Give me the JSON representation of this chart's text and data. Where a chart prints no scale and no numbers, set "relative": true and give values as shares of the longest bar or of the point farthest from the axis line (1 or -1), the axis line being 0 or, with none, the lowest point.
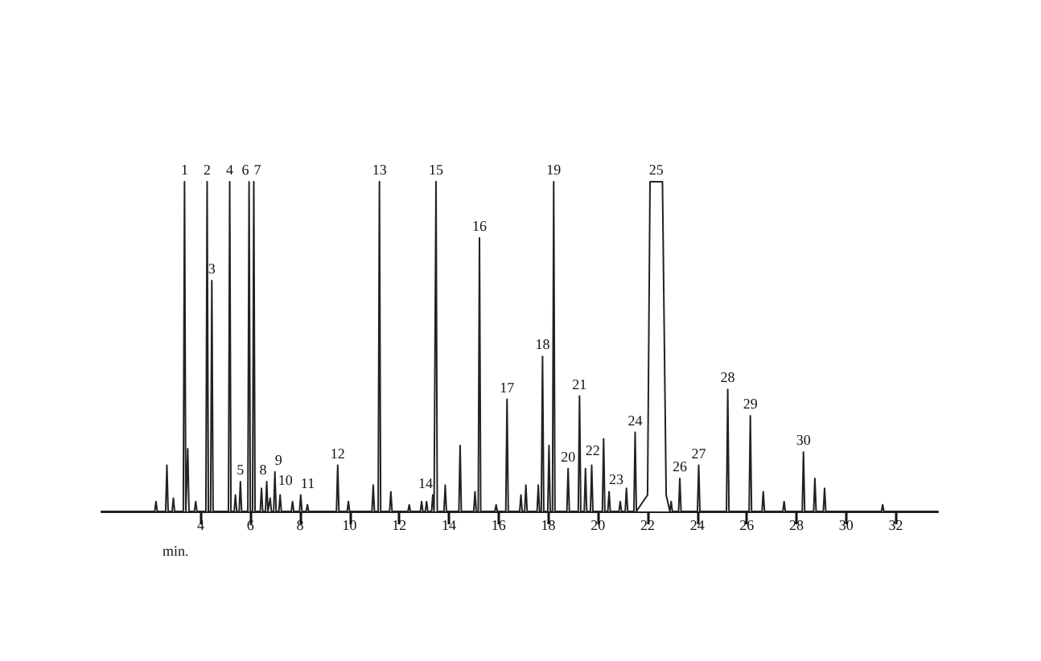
{
  "chart_data": {
    "type": "line",
    "relative": true,
    "xlabel": "min.",
    "xlim": [
      0,
      33.7
    ],
    "xticks": [
      4,
      6,
      8,
      10,
      12,
      14,
      16,
      18,
      20,
      22,
      24,
      26,
      28,
      30,
      32
    ],
    "grid": false,
    "marker": "none",
    "line_style": "solid",
    "series": [
      {
        "color": "#222222",
        "x": [
          0,
          2.15,
          2.2,
          2.25,
          2.59,
          2.64,
          2.69,
          2.85,
          2.9,
          2.95,
          3.3,
          3.35,
          3.4,
          3.43,
          3.48,
          3.53,
          3.75,
          3.8,
          3.85,
          4.21,
          4.26,
          4.31,
          4.4,
          4.45,
          4.5,
          5.12,
          5.17,
          5.22,
          5.35,
          5.4,
          5.45,
          5.55,
          5.6,
          5.65,
          5.9,
          5.95,
          6.0,
          6.09,
          6.14,
          6.19,
          6.4,
          6.45,
          6.5,
          6.61,
          6.66,
          6.71,
          6.75,
          6.8,
          6.85,
          6.94,
          6.99,
          7.04,
          7.15,
          7.2,
          7.25,
          7.65,
          7.7,
          7.75,
          7.98,
          8.03,
          8.08,
          8.25,
          8.3,
          8.35,
          9.47,
          9.52,
          9.57,
          9.9,
          9.95,
          10.0,
          10.9,
          10.95,
          11.0,
          11.15,
          11.2,
          11.25,
          11.61,
          11.66,
          11.71,
          12.35,
          12.4,
          12.45,
          12.85,
          12.9,
          12.95,
          13.05,
          13.1,
          13.15,
          13.3,
          13.35,
          13.4,
          13.43,
          13.48,
          13.53,
          13.8,
          13.85,
          13.9,
          14.4,
          14.45,
          14.5,
          15.0,
          15.05,
          15.1,
          15.18,
          15.23,
          15.28,
          15.85,
          15.9,
          15.95,
          16.29,
          16.34,
          16.39,
          16.85,
          16.9,
          16.95,
          17.05,
          17.1,
          17.15,
          17.55,
          17.6,
          17.65,
          17.72,
          17.77,
          17.82,
          17.98,
          18.03,
          18.08,
          18.17,
          18.22,
          18.27,
          18.75,
          18.8,
          18.85,
          19.21,
          19.26,
          19.31,
          19.45,
          19.5,
          19.55,
          19.7,
          19.75,
          19.8,
          20.18,
          20.23,
          20.28,
          20.4,
          20.45,
          20.5,
          20.85,
          20.9,
          20.95,
          21.1,
          21.15,
          21.2,
          21.45,
          21.5,
          21.55,
          22.0,
          22.1,
          22.6,
          22.75,
          22.9,
          22.95,
          23.0,
          23.25,
          23.3,
          23.35,
          24.01,
          24.06,
          24.11,
          25.18,
          25.23,
          25.28,
          26.09,
          26.14,
          26.19,
          26.61,
          26.66,
          26.71,
          27.45,
          27.5,
          27.55,
          28.23,
          28.28,
          28.33,
          28.69,
          28.74,
          28.79,
          29.08,
          29.13,
          29.18,
          31.42,
          31.47,
          31.52,
          33.7
        ],
        "values": [
          0,
          0,
          0.03,
          0,
          0,
          0.14,
          0,
          0,
          0.04,
          0,
          0,
          1,
          0,
          0,
          0.19,
          0,
          0,
          0.03,
          0,
          0,
          1,
          0,
          0,
          0.7,
          0,
          0,
          1,
          0,
          0,
          0.05,
          0,
          0,
          0.09,
          0,
          0,
          1,
          0,
          0,
          1,
          0,
          0,
          0.07,
          0,
          0,
          0.09,
          0,
          0,
          0.04,
          0,
          0,
          0.12,
          0,
          0,
          0.05,
          0,
          0,
          0.03,
          0,
          0,
          0.05,
          0,
          0,
          0.02,
          0,
          0,
          0.14,
          0,
          0,
          0.03,
          0,
          0,
          0.08,
          0,
          0,
          1,
          0,
          0,
          0.06,
          0,
          0,
          0.02,
          0,
          0,
          0.03,
          0,
          0,
          0.03,
          0,
          0,
          0.05,
          0,
          0,
          1,
          0,
          0,
          0.08,
          0,
          0,
          0.2,
          0,
          0,
          0.06,
          0,
          0,
          0.83,
          0,
          0,
          0.02,
          0,
          0,
          0.34,
          0,
          0,
          0.05,
          0,
          0,
          0.08,
          0,
          0,
          0.08,
          0,
          0,
          0.47,
          0,
          0,
          0.2,
          0,
          0,
          1,
          0,
          0,
          0.13,
          0,
          0,
          0.35,
          0,
          0,
          0.13,
          0,
          0,
          0.14,
          0,
          0,
          0.22,
          0,
          0,
          0.06,
          0,
          0,
          0.03,
          0,
          0,
          0.07,
          0,
          0,
          0.24,
          0,
          0.05,
          1,
          1,
          0.05,
          0,
          0.03,
          0,
          0,
          0.1,
          0,
          0,
          0.14,
          0,
          0,
          0.37,
          0,
          0,
          0.29,
          0,
          0,
          0.06,
          0,
          0,
          0.03,
          0,
          0,
          0.18,
          0,
          0,
          0.1,
          0,
          0,
          0.07,
          0,
          0,
          0.02,
          0,
          0
        ]
      }
    ],
    "annotations": [
      {
        "text": "1",
        "x": 3.35,
        "y": 1
      },
      {
        "text": "2",
        "x": 4.26,
        "y": 1
      },
      {
        "text": "3",
        "x": 4.45,
        "y": 0.7
      },
      {
        "text": "4",
        "x": 5.17,
        "y": 1
      },
      {
        "text": "5",
        "x": 5.6,
        "y": 0.09
      },
      {
        "text": "6",
        "x": 5.95,
        "y": 1
      },
      {
        "text": "7",
        "x": 6.14,
        "y": 1
      },
      {
        "text": "8",
        "x": 6.66,
        "y": 0.09
      },
      {
        "text": "9",
        "x": 6.99,
        "y": 0.12
      },
      {
        "text": "10",
        "x": 7.7,
        "y": 0.03
      },
      {
        "text": "11",
        "x": 8.03,
        "y": 0.05
      },
      {
        "text": "12",
        "x": 9.52,
        "y": 0.14
      },
      {
        "text": "13",
        "x": 11.2,
        "y": 1
      },
      {
        "text": "14",
        "x": 13.35,
        "y": 0.05
      },
      {
        "text": "15",
        "x": 13.48,
        "y": 1
      },
      {
        "text": "16",
        "x": 15.23,
        "y": 0.83
      },
      {
        "text": "17",
        "x": 16.34,
        "y": 0.34
      },
      {
        "text": "18",
        "x": 17.77,
        "y": 0.47
      },
      {
        "text": "19",
        "x": 18.22,
        "y": 1
      },
      {
        "text": "20",
        "x": 18.8,
        "y": 0.13
      },
      {
        "text": "21",
        "x": 19.26,
        "y": 0.35
      },
      {
        "text": "22",
        "x": 19.5,
        "y": 0.13
      },
      {
        "text": "23",
        "x": 20.45,
        "y": 0.06
      },
      {
        "text": "24",
        "x": 21.5,
        "y": 0.24
      },
      {
        "text": "25",
        "x": 22.35,
        "y": 1
      },
      {
        "text": "26",
        "x": 23.3,
        "y": 0.1
      },
      {
        "text": "27",
        "x": 24.06,
        "y": 0.14
      },
      {
        "text": "28",
        "x": 25.23,
        "y": 0.37
      },
      {
        "text": "29",
        "x": 26.14,
        "y": 0.29
      },
      {
        "text": "30",
        "x": 28.28,
        "y": 0.18
      }
    ]
  }
}
